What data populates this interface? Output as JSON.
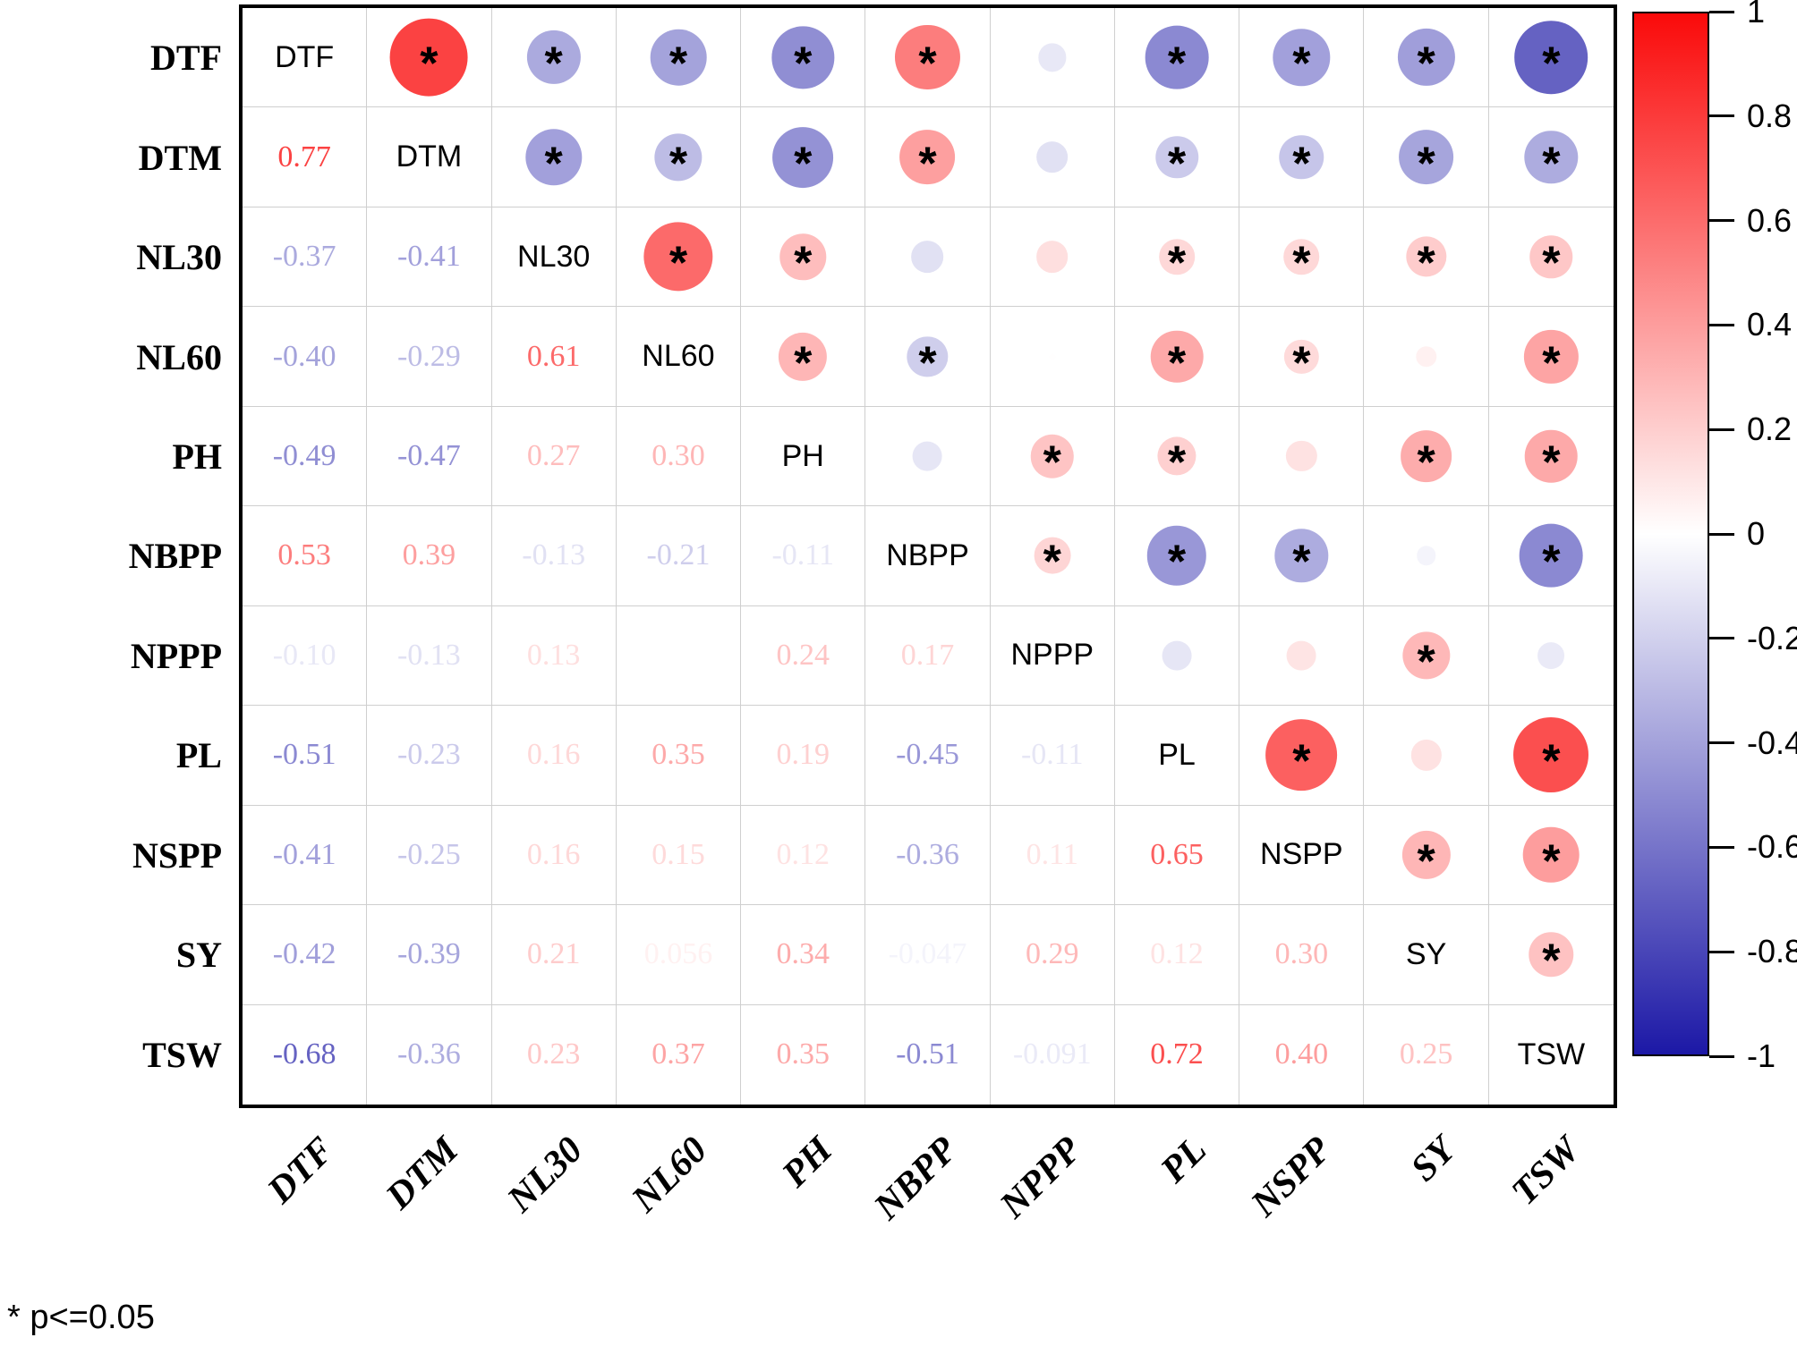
{
  "chart_data": {
    "type": "heatmap",
    "subtype": "correlation-matrix",
    "variables": [
      "DTF",
      "DTM",
      "NL30",
      "NL60",
      "PH",
      "NBPP",
      "NPPP",
      "PL",
      "NSPP",
      "SY",
      "TSW"
    ],
    "lower_triangle": [
      {
        "row": "DTF",
        "values": [],
        "labels": [],
        "significant": []
      },
      {
        "row": "DTM",
        "values": [
          0.77
        ],
        "labels": [
          "0.77"
        ],
        "significant": [
          true
        ]
      },
      {
        "row": "NL30",
        "values": [
          -0.37,
          -0.41
        ],
        "labels": [
          "-0.37",
          "-0.41"
        ],
        "significant": [
          true,
          true
        ]
      },
      {
        "row": "NL60",
        "values": [
          -0.4,
          -0.29,
          0.61
        ],
        "labels": [
          "-0.40",
          "-0.29",
          "0.61"
        ],
        "significant": [
          true,
          true,
          true
        ]
      },
      {
        "row": "PH",
        "values": [
          -0.49,
          -0.47,
          0.27,
          0.3
        ],
        "labels": [
          "-0.49",
          "-0.47",
          "0.27",
          "0.30"
        ],
        "significant": [
          true,
          true,
          true,
          true
        ]
      },
      {
        "row": "NBPP",
        "values": [
          0.53,
          0.39,
          -0.13,
          -0.21,
          -0.11
        ],
        "labels": [
          "0.53",
          "0.39",
          "-0.13",
          "-0.21",
          "-0.11"
        ],
        "significant": [
          true,
          true,
          false,
          true,
          false
        ]
      },
      {
        "row": "NPPP",
        "values": [
          -0.1,
          -0.13,
          0.13,
          0.005,
          0.24,
          0.17
        ],
        "labels": [
          "-0.10",
          "-0.13",
          "0.13",
          "",
          "0.24",
          "0.17"
        ],
        "significant": [
          false,
          false,
          false,
          false,
          true,
          true
        ]
      },
      {
        "row": "PL",
        "values": [
          -0.51,
          -0.23,
          0.16,
          0.35,
          0.19,
          -0.45,
          -0.11
        ],
        "labels": [
          "-0.51",
          "-0.23",
          "0.16",
          "0.35",
          "0.19",
          "-0.45",
          "-0.11"
        ],
        "significant": [
          true,
          true,
          true,
          true,
          true,
          true,
          false
        ]
      },
      {
        "row": "NSPP",
        "values": [
          -0.41,
          -0.25,
          0.16,
          0.15,
          0.12,
          -0.36,
          0.11,
          0.65
        ],
        "labels": [
          "-0.41",
          "-0.25",
          "0.16",
          "0.15",
          "0.12",
          "-0.36",
          "0.11",
          "0.65"
        ],
        "significant": [
          true,
          true,
          true,
          true,
          false,
          true,
          false,
          true
        ]
      },
      {
        "row": "SY",
        "values": [
          -0.42,
          -0.39,
          0.21,
          0.056,
          0.34,
          -0.047,
          0.29,
          0.12,
          0.3
        ],
        "labels": [
          "-0.42",
          "-0.39",
          "0.21",
          "0.056",
          "0.34",
          "-0.047",
          "0.29",
          "0.12",
          "0.30"
        ],
        "significant": [
          true,
          true,
          true,
          false,
          true,
          false,
          true,
          false,
          true
        ]
      },
      {
        "row": "TSW",
        "values": [
          -0.68,
          -0.36,
          0.23,
          0.37,
          0.35,
          -0.51,
          -0.091,
          0.72,
          0.4,
          0.25
        ],
        "labels": [
          "-0.68",
          "-0.36",
          "0.23",
          "0.37",
          "0.35",
          "-0.51",
          "-0.091",
          "0.72",
          "0.40",
          "0.25"
        ],
        "significant": [
          true,
          true,
          true,
          true,
          true,
          true,
          false,
          true,
          true,
          true
        ]
      }
    ],
    "colorbar": {
      "ticks": [
        "1",
        "0.8",
        "0.6",
        "0.4",
        "0.2",
        "0",
        "-0.2",
        "-0.4",
        "-0.6",
        "-0.8",
        "-1"
      ],
      "max_color": "#fa0a0a",
      "zero_color": "#ffffff",
      "min_color": "#1c18a6",
      "position": "right"
    },
    "footnote": "* p<=0.05",
    "grid": true,
    "value_range": [
      -1,
      1
    ]
  }
}
